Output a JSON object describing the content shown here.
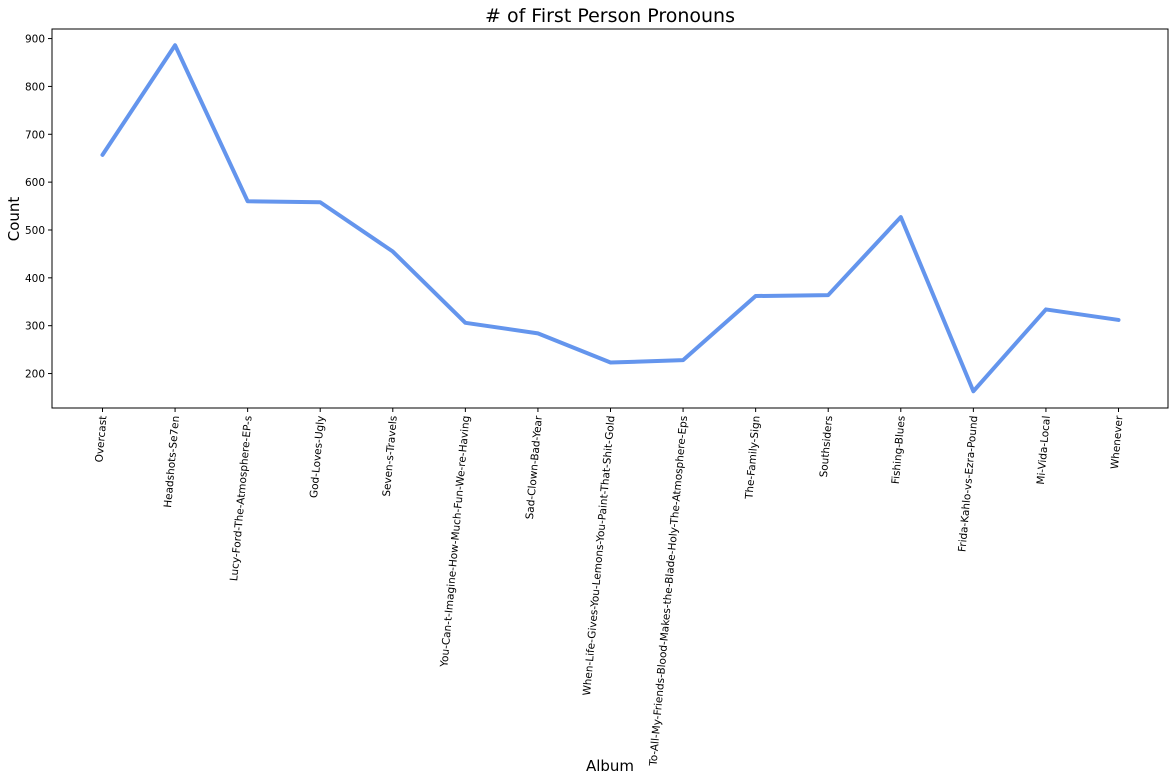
{
  "chart_data": {
    "type": "line",
    "title": "# of First Person Pronouns",
    "xlabel": "Album",
    "ylabel": "Count",
    "categories": [
      "Overcast",
      "Headshots-Se7en",
      "Lucy-Ford-The-Atmosphere-EP-s",
      "God-Loves-Ugly",
      "Seven-s-Travels",
      "You-Can-t-Imagine-How-Much-Fun-We-re-Having",
      "Sad-Clown-Bad-Year",
      "When-Life-Gives-You-Lemons-You-Paint-That-Shit-Gold",
      "To-All-My-Friends-Blood-Makes-the-Blade-Holy-The-Atmosphere-Eps",
      "The-Family-Sign",
      "Southsiders",
      "Fishing-Blues",
      "Frida-Kahlo-vs-Ezra-Pound",
      "Mi-Vida-Local",
      "Whenever"
    ],
    "values": [
      657,
      886,
      560,
      558,
      455,
      306,
      284,
      223,
      228,
      362,
      364,
      527,
      163,
      334,
      312
    ],
    "ylim": [
      128,
      920
    ],
    "yticks": [
      200,
      300,
      400,
      500,
      600,
      700,
      800,
      900
    ],
    "line_color": "#6495ED",
    "grid": false,
    "legend": "none"
  }
}
